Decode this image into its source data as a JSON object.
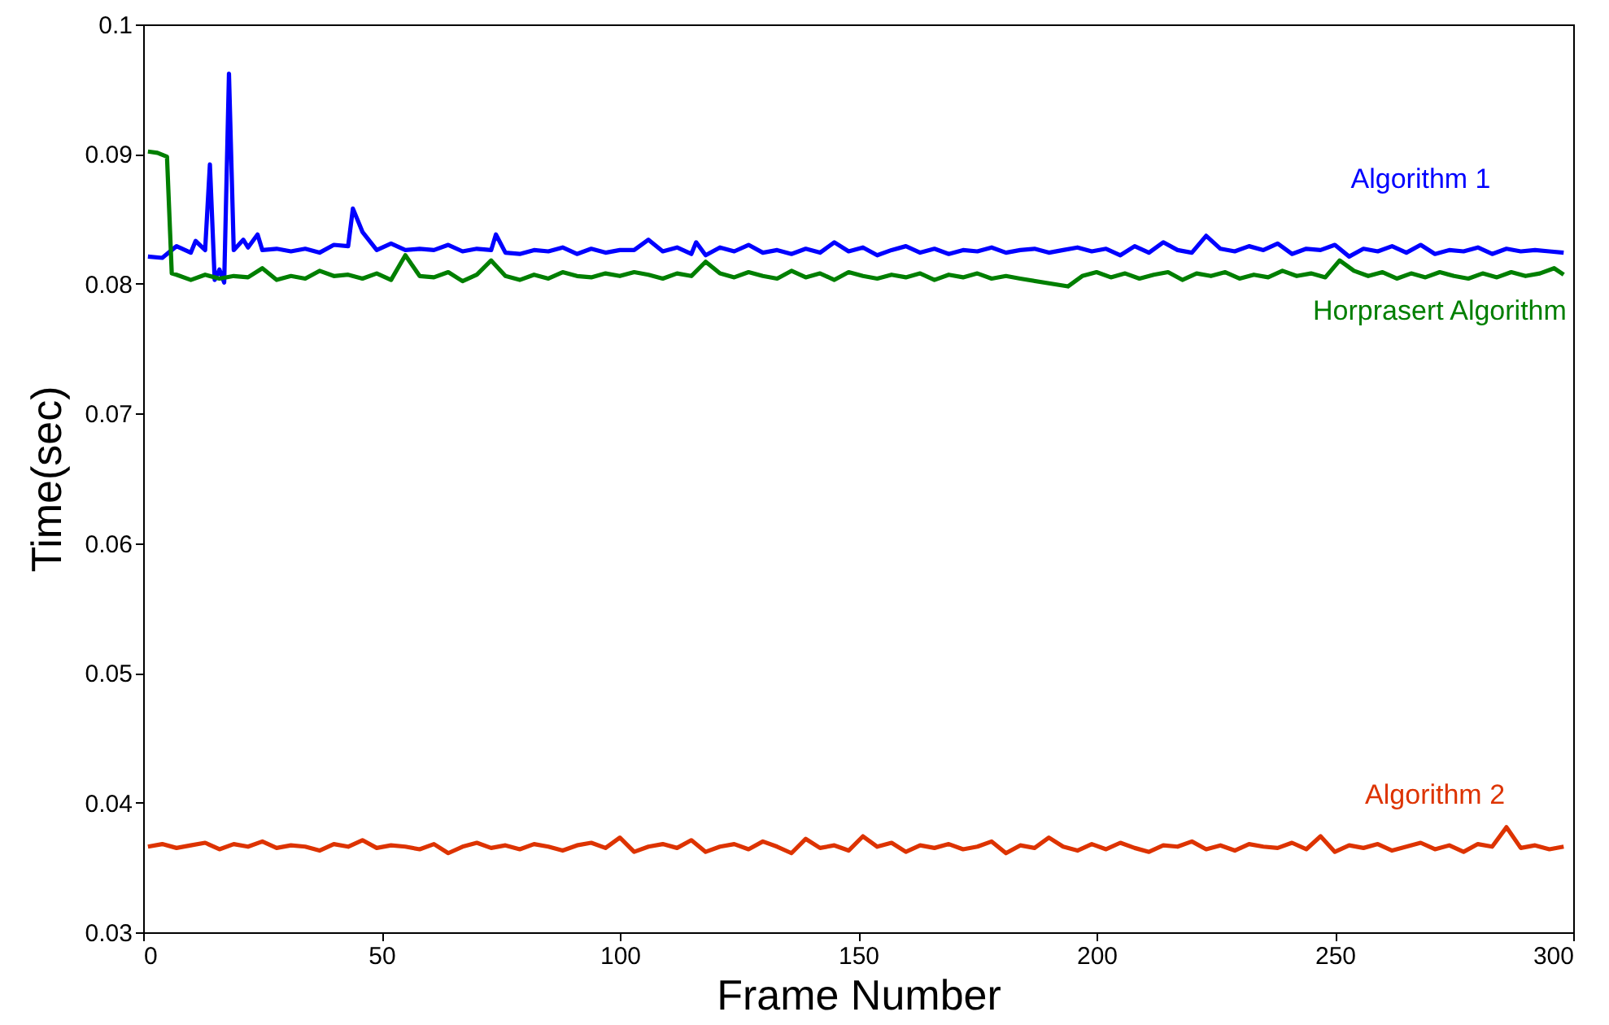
{
  "chart_data": {
    "type": "line",
    "xlabel": "Frame Number",
    "ylabel": "Time(sec)",
    "xlim": [
      0,
      300
    ],
    "xticks": [
      0,
      50,
      100,
      150,
      200,
      250,
      300
    ],
    "ylim": [
      0.03,
      0.1
    ],
    "yticks": [
      0.03,
      0.04,
      0.05,
      0.06,
      0.07,
      0.08,
      0.09,
      0.1
    ],
    "grid": false,
    "legend": false,
    "marker": "none",
    "line_style": "solid",
    "series": [
      {
        "name": "Algorithm 1",
        "color": "#0000ff",
        "x": [
          1,
          4,
          7,
          10,
          11,
          13,
          14,
          15,
          16,
          17,
          18,
          19,
          21,
          22,
          24,
          25,
          28,
          31,
          34,
          37,
          40,
          43,
          44,
          46,
          49,
          52,
          55,
          58,
          61,
          64,
          67,
          70,
          73,
          74,
          76,
          79,
          82,
          85,
          88,
          91,
          94,
          97,
          100,
          103,
          106,
          109,
          112,
          115,
          116,
          118,
          121,
          124,
          127,
          130,
          133,
          136,
          139,
          142,
          145,
          148,
          151,
          154,
          157,
          160,
          163,
          166,
          169,
          172,
          175,
          178,
          181,
          184,
          187,
          190,
          193,
          196,
          199,
          202,
          205,
          208,
          211,
          214,
          217,
          220,
          223,
          226,
          229,
          232,
          235,
          238,
          241,
          244,
          247,
          250,
          253,
          256,
          259,
          262,
          265,
          268,
          271,
          274,
          277,
          280,
          283,
          286,
          289,
          292,
          295,
          298
        ],
        "values": [
          0.0821,
          0.082,
          0.0829,
          0.0824,
          0.0833,
          0.0826,
          0.0892,
          0.0803,
          0.0811,
          0.0801,
          0.0962,
          0.0826,
          0.0834,
          0.0828,
          0.0838,
          0.0826,
          0.0827,
          0.0825,
          0.0827,
          0.0824,
          0.083,
          0.0829,
          0.0858,
          0.084,
          0.0826,
          0.0831,
          0.0826,
          0.0827,
          0.0826,
          0.083,
          0.0825,
          0.0827,
          0.0826,
          0.0838,
          0.0824,
          0.0823,
          0.0826,
          0.0825,
          0.0828,
          0.0823,
          0.0827,
          0.0824,
          0.0826,
          0.0826,
          0.0834,
          0.0825,
          0.0828,
          0.0823,
          0.0832,
          0.0822,
          0.0828,
          0.0825,
          0.083,
          0.0824,
          0.0826,
          0.0823,
          0.0827,
          0.0824,
          0.0832,
          0.0825,
          0.0828,
          0.0822,
          0.0826,
          0.0829,
          0.0824,
          0.0827,
          0.0823,
          0.0826,
          0.0825,
          0.0828,
          0.0824,
          0.0826,
          0.0827,
          0.0824,
          0.0826,
          0.0828,
          0.0825,
          0.0827,
          0.0822,
          0.0829,
          0.0824,
          0.0832,
          0.0826,
          0.0824,
          0.0837,
          0.0827,
          0.0825,
          0.0829,
          0.0826,
          0.0831,
          0.0823,
          0.0827,
          0.0826,
          0.083,
          0.0821,
          0.0827,
          0.0825,
          0.0829,
          0.0824,
          0.083,
          0.0823,
          0.0826,
          0.0825,
          0.0828,
          0.0823,
          0.0827,
          0.0825,
          0.0826,
          0.0825,
          0.0824
        ]
      },
      {
        "name": "Horprasert Algorithm",
        "color": "#007f00",
        "x": [
          1,
          3,
          5,
          6,
          7,
          10,
          13,
          16,
          19,
          22,
          25,
          28,
          31,
          34,
          37,
          40,
          43,
          46,
          49,
          52,
          55,
          58,
          61,
          64,
          67,
          70,
          73,
          76,
          79,
          82,
          85,
          88,
          91,
          94,
          97,
          100,
          103,
          106,
          109,
          112,
          115,
          118,
          121,
          124,
          127,
          130,
          133,
          136,
          139,
          142,
          145,
          148,
          151,
          154,
          157,
          160,
          163,
          166,
          169,
          172,
          175,
          178,
          181,
          184,
          194,
          197,
          200,
          203,
          206,
          209,
          212,
          215,
          218,
          221,
          224,
          227,
          230,
          233,
          236,
          239,
          242,
          245,
          248,
          251,
          254,
          257,
          260,
          263,
          266,
          269,
          272,
          275,
          278,
          281,
          284,
          287,
          290,
          293,
          296,
          298
        ],
        "values": [
          0.0902,
          0.0901,
          0.0898,
          0.0808,
          0.0807,
          0.0803,
          0.0807,
          0.0804,
          0.0806,
          0.0805,
          0.0812,
          0.0803,
          0.0806,
          0.0804,
          0.081,
          0.0806,
          0.0807,
          0.0804,
          0.0808,
          0.0803,
          0.0822,
          0.0806,
          0.0805,
          0.0809,
          0.0802,
          0.0807,
          0.0818,
          0.0806,
          0.0803,
          0.0807,
          0.0804,
          0.0809,
          0.0806,
          0.0805,
          0.0808,
          0.0806,
          0.0809,
          0.0807,
          0.0804,
          0.0808,
          0.0806,
          0.0817,
          0.0808,
          0.0805,
          0.0809,
          0.0806,
          0.0804,
          0.081,
          0.0805,
          0.0808,
          0.0803,
          0.0809,
          0.0806,
          0.0804,
          0.0807,
          0.0805,
          0.0808,
          0.0803,
          0.0807,
          0.0805,
          0.0808,
          0.0804,
          0.0806,
          0.0804,
          0.0798,
          0.0806,
          0.0809,
          0.0805,
          0.0808,
          0.0804,
          0.0807,
          0.0809,
          0.0803,
          0.0808,
          0.0806,
          0.0809,
          0.0804,
          0.0807,
          0.0805,
          0.081,
          0.0806,
          0.0808,
          0.0805,
          0.0818,
          0.081,
          0.0806,
          0.0809,
          0.0804,
          0.0808,
          0.0805,
          0.0809,
          0.0806,
          0.0804,
          0.0808,
          0.0805,
          0.0809,
          0.0806,
          0.0808,
          0.0812,
          0.0807
        ]
      },
      {
        "name": "Algorithm 2",
        "color": "#dd3300",
        "x": [
          1,
          4,
          7,
          10,
          13,
          16,
          19,
          22,
          25,
          28,
          31,
          34,
          37,
          40,
          43,
          46,
          49,
          52,
          55,
          58,
          61,
          64,
          67,
          70,
          73,
          76,
          79,
          82,
          85,
          88,
          91,
          94,
          97,
          100,
          103,
          106,
          109,
          112,
          115,
          118,
          121,
          124,
          127,
          130,
          133,
          136,
          139,
          142,
          145,
          148,
          151,
          154,
          157,
          160,
          163,
          166,
          169,
          172,
          175,
          178,
          181,
          184,
          187,
          190,
          193,
          196,
          199,
          202,
          205,
          208,
          211,
          214,
          217,
          220,
          223,
          226,
          229,
          232,
          235,
          238,
          241,
          244,
          247,
          250,
          253,
          256,
          259,
          262,
          265,
          268,
          271,
          274,
          277,
          280,
          283,
          286,
          289,
          292,
          295,
          298
        ],
        "values": [
          0.0366,
          0.0368,
          0.0365,
          0.0367,
          0.0369,
          0.0364,
          0.0368,
          0.0366,
          0.037,
          0.0365,
          0.0367,
          0.0366,
          0.0363,
          0.0368,
          0.0366,
          0.0371,
          0.0365,
          0.0367,
          0.0366,
          0.0364,
          0.0368,
          0.0361,
          0.0366,
          0.0369,
          0.0365,
          0.0367,
          0.0364,
          0.0368,
          0.0366,
          0.0363,
          0.0367,
          0.0369,
          0.0365,
          0.0373,
          0.0362,
          0.0366,
          0.0368,
          0.0365,
          0.0371,
          0.0362,
          0.0366,
          0.0368,
          0.0364,
          0.037,
          0.0366,
          0.0361,
          0.0372,
          0.0365,
          0.0367,
          0.0363,
          0.0374,
          0.0366,
          0.0369,
          0.0362,
          0.0367,
          0.0365,
          0.0368,
          0.0364,
          0.0366,
          0.037,
          0.0361,
          0.0367,
          0.0365,
          0.0373,
          0.0366,
          0.0363,
          0.0368,
          0.0364,
          0.0369,
          0.0365,
          0.0362,
          0.0367,
          0.0366,
          0.037,
          0.0364,
          0.0367,
          0.0363,
          0.0368,
          0.0366,
          0.0365,
          0.0369,
          0.0364,
          0.0374,
          0.0362,
          0.0367,
          0.0365,
          0.0368,
          0.0363,
          0.0366,
          0.0369,
          0.0364,
          0.0367,
          0.0362,
          0.0368,
          0.0366,
          0.0381,
          0.0365,
          0.0367,
          0.0364,
          0.0366
        ]
      }
    ]
  }
}
